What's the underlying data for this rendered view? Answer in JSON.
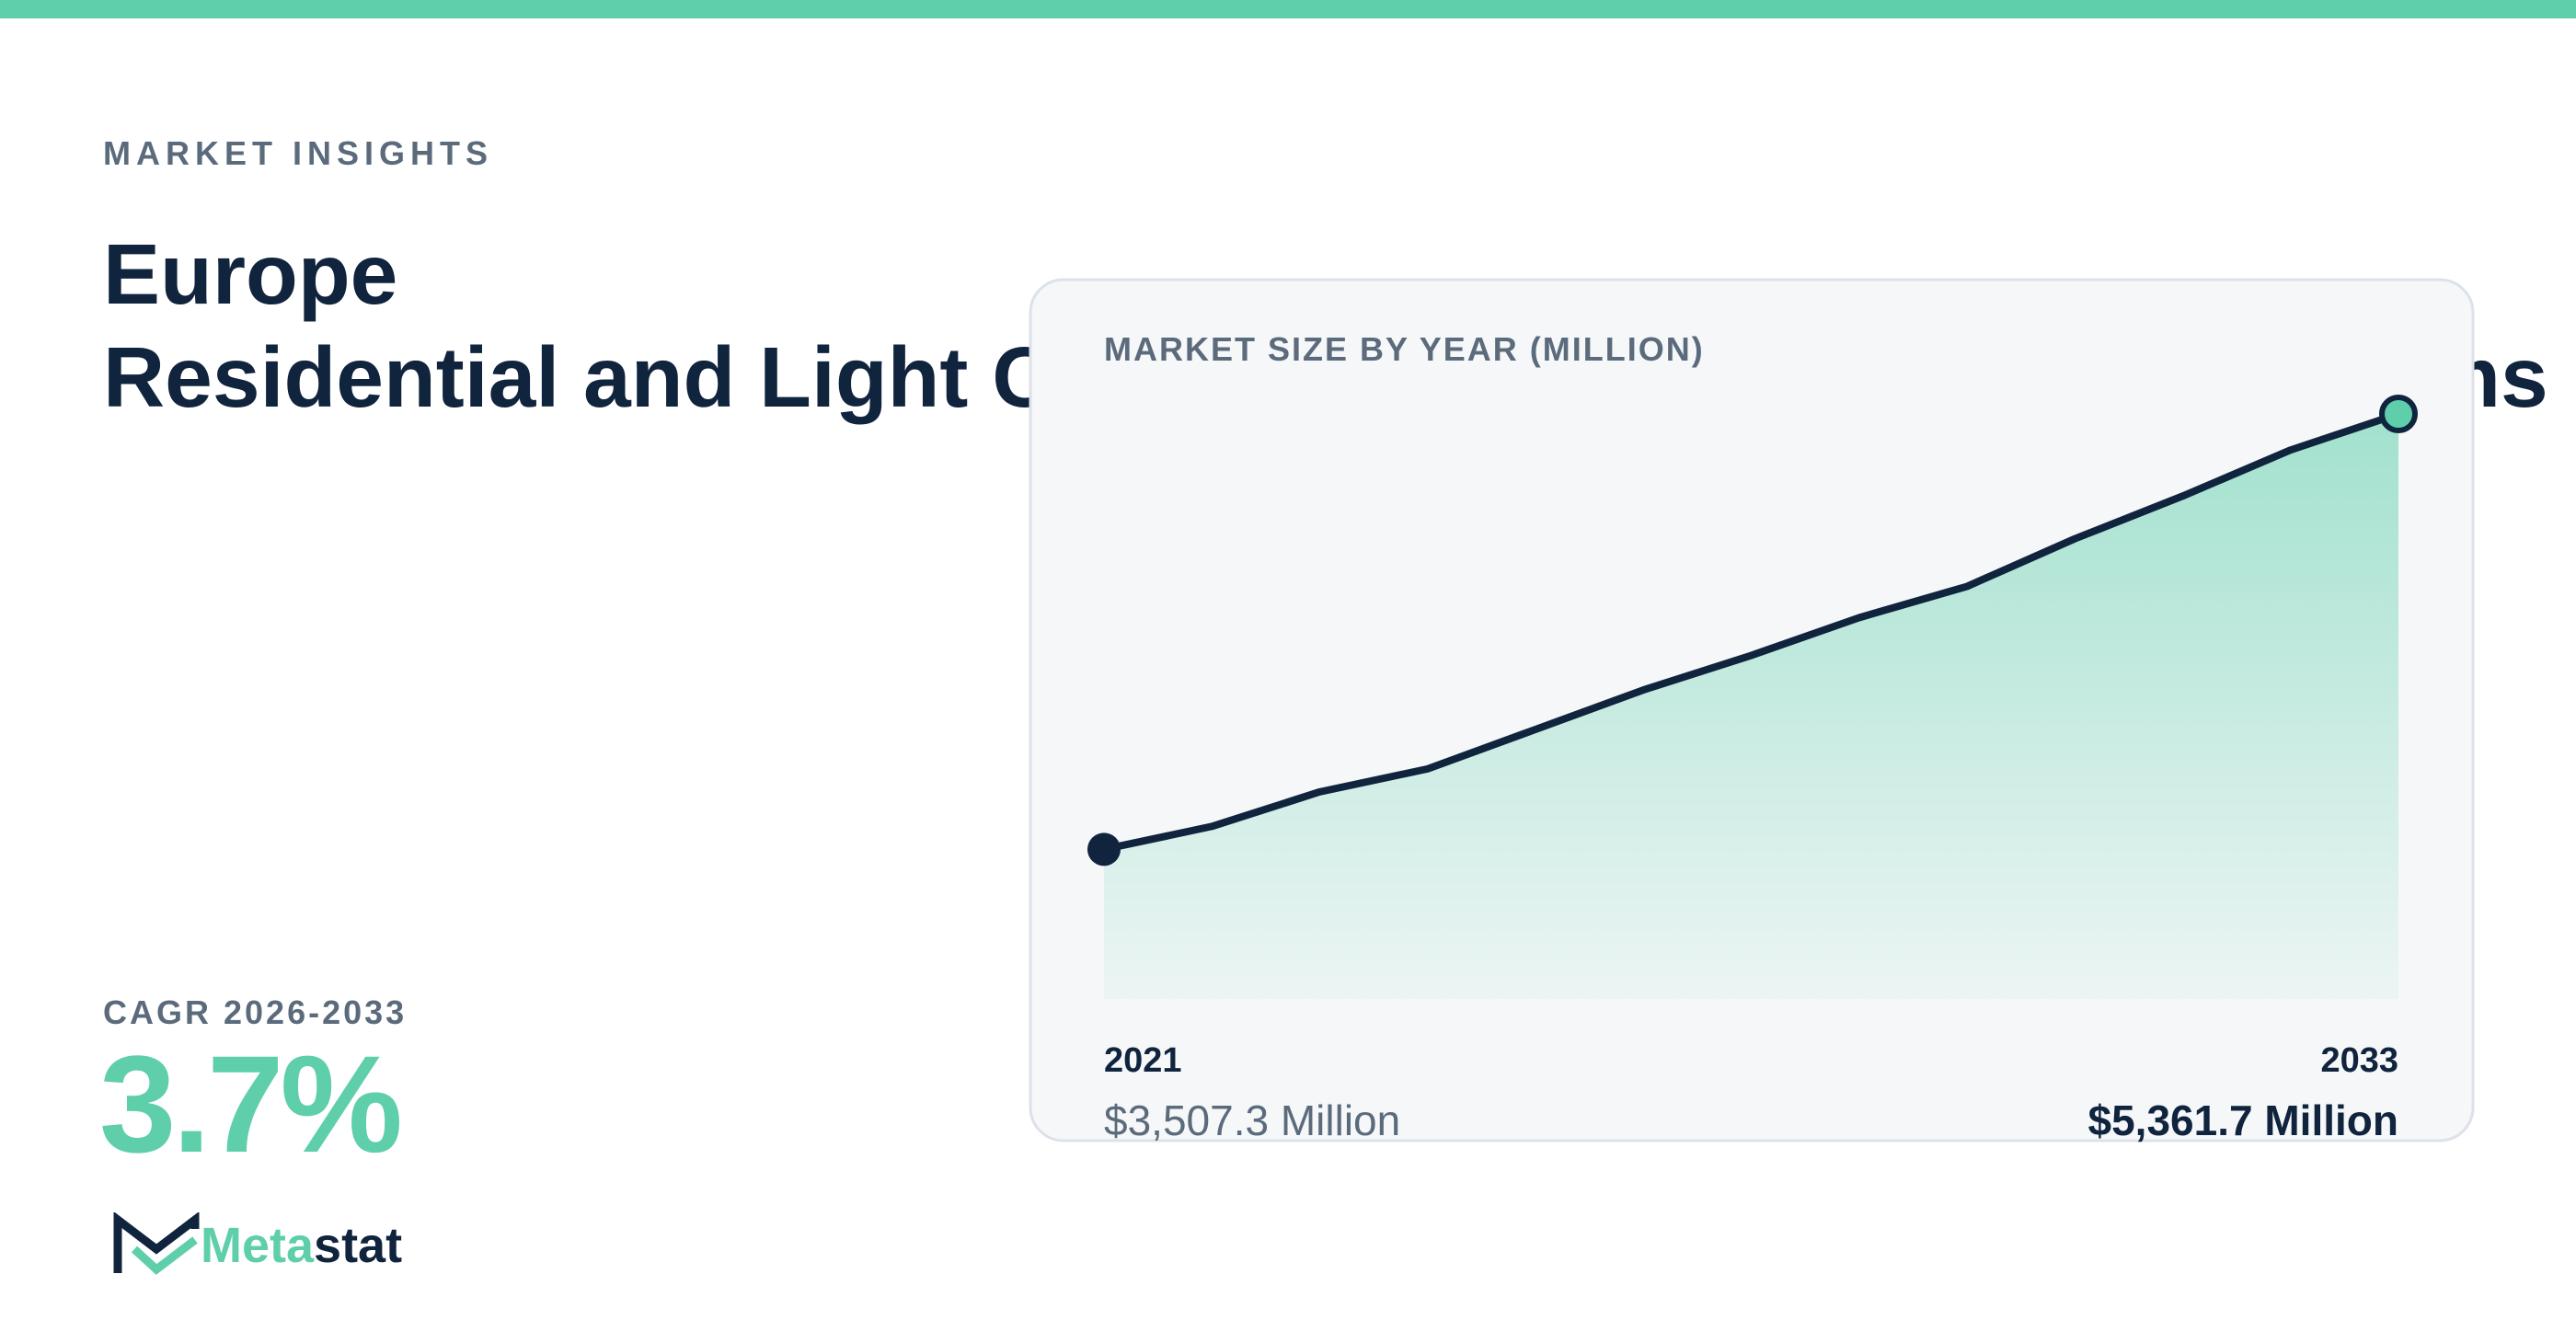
{
  "header": {
    "eyebrow": "MARKET INSIGHTS",
    "title_line1": "Europe",
    "title_line2": "Residential and Light Commercial Air Conditioning Systems"
  },
  "cagr": {
    "label": "CAGR 2026-2033",
    "value": "3.7%"
  },
  "logo": {
    "part1": "Meta",
    "part2": "stat"
  },
  "chart_data": {
    "type": "line",
    "title": "MARKET SIZE BY YEAR (MILLION)",
    "categories": [
      "2021",
      null,
      null,
      null,
      null,
      null,
      null,
      null,
      null,
      null,
      null,
      null,
      "2033"
    ],
    "values": [
      3507.3,
      3605,
      3752,
      3850,
      4018,
      4186,
      4333,
      4494,
      4627,
      4830,
      5012,
      5208,
      5361.7
    ],
    "value_labels": [
      "$3,507.3 Million",
      null,
      null,
      null,
      null,
      null,
      null,
      null,
      null,
      null,
      null,
      null,
      "$5,361.7 Million"
    ],
    "ylim": [
      2870,
      5361.7
    ],
    "color": "#10243e",
    "fill_color": "#5ecfaa"
  }
}
